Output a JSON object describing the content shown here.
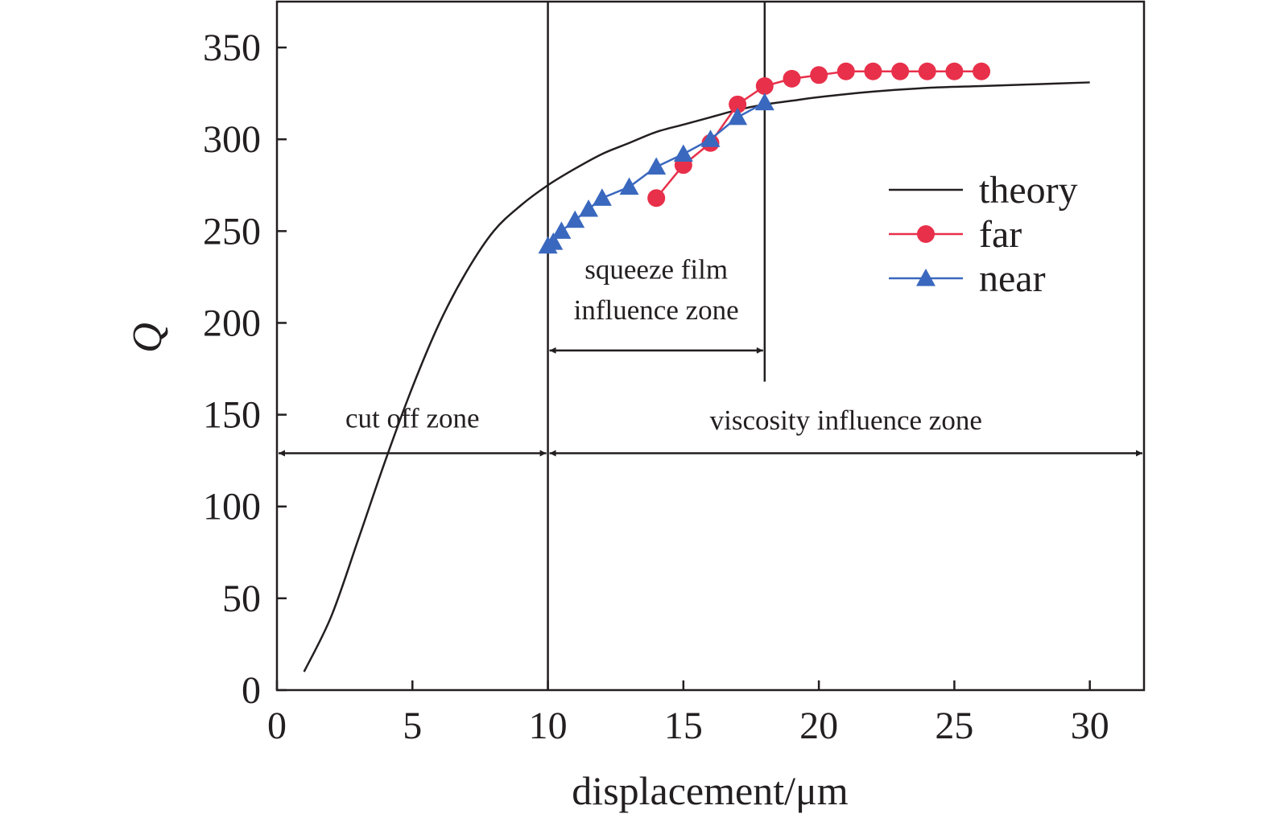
{
  "chart_data": {
    "type": "line",
    "title": "",
    "xlabel": "displacement/μm",
    "ylabel": "Q",
    "xlim": [
      0,
      32
    ],
    "ylim": [
      0,
      375
    ],
    "xticks": [
      0,
      5,
      10,
      15,
      20,
      25,
      30
    ],
    "yticks": [
      0,
      50,
      100,
      150,
      200,
      250,
      300,
      350
    ],
    "grid": false,
    "legend_position": "right",
    "series": [
      {
        "name": "theory",
        "color": "#231f20",
        "marker": "none",
        "x": [
          1,
          2,
          3,
          4,
          5,
          6,
          7,
          8,
          9,
          10,
          11,
          12,
          13,
          14,
          15,
          16,
          17,
          18,
          19,
          20,
          22,
          24,
          26,
          28,
          30
        ],
        "y": [
          10,
          40,
          82,
          125,
          165,
          200,
          228,
          250,
          264,
          275,
          284,
          292,
          298,
          304,
          308,
          312,
          316,
          319,
          321,
          323,
          326,
          328,
          329,
          330,
          331
        ]
      },
      {
        "name": "far",
        "color": "#e8304a",
        "marker": "circle",
        "x": [
          14,
          15,
          16,
          17,
          18,
          19,
          20,
          21,
          22,
          23,
          24,
          25,
          26
        ],
        "y": [
          268,
          286,
          298,
          319,
          329,
          333,
          335,
          337,
          337,
          337,
          337,
          337,
          337
        ]
      },
      {
        "name": "near",
        "color": "#3a68bf",
        "marker": "triangle",
        "x": [
          10,
          10.2,
          10.5,
          11,
          11.5,
          12,
          13,
          14,
          15,
          16,
          17,
          18
        ],
        "y": [
          242,
          244,
          250,
          256,
          262,
          268,
          274,
          285,
          292,
          300,
          312,
          320
        ]
      }
    ],
    "vertical_lines": [
      10,
      18
    ],
    "annotations": [
      {
        "id": "cutoff",
        "text": "cut off zone",
        "x": 5,
        "y": 143,
        "arrow_from": 0,
        "arrow_to": 10,
        "arrow_y": 129
      },
      {
        "id": "viscosity",
        "text": "viscosity influence zone",
        "x": 21,
        "y": 142,
        "arrow_from": 10,
        "arrow_to": 32,
        "arrow_y": 129
      },
      {
        "id": "squeeze1",
        "text": "squeeze film",
        "x": 14.0,
        "y": 224,
        "arrow_from": 10,
        "arrow_to": 18,
        "arrow_y": 185
      },
      {
        "id": "squeeze2",
        "text": "influence zone",
        "x": 14.0,
        "y": 202
      }
    ]
  }
}
